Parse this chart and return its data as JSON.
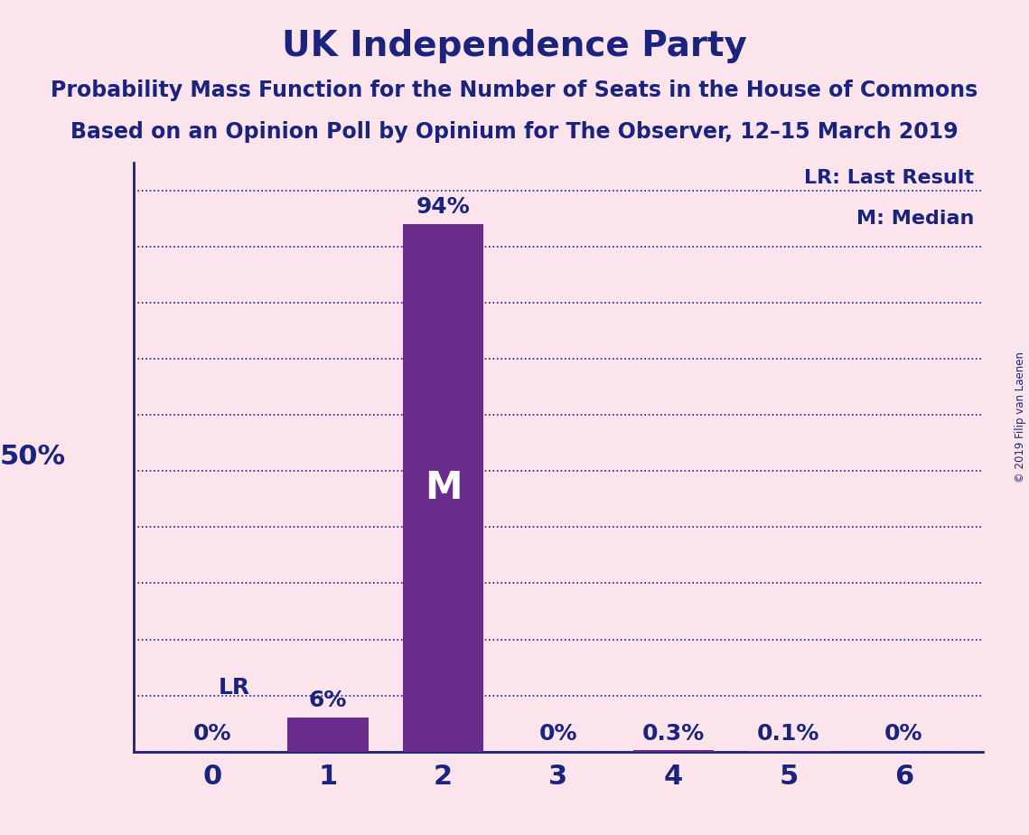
{
  "title": "UK Independence Party",
  "subtitle1": "Probability Mass Function for the Number of Seats in the House of Commons",
  "subtitle2": "Based on an Opinion Poll by Opinium for The Observer, 12–15 March 2019",
  "copyright": "© 2019 Filip van Laenen",
  "categories": [
    0,
    1,
    2,
    3,
    4,
    5,
    6
  ],
  "values": [
    0.0,
    0.06,
    0.94,
    0.0,
    0.003,
    0.001,
    0.0
  ],
  "bar_labels": [
    "0%",
    "6%",
    "94%",
    "0%",
    "0.3%",
    "0.1%",
    "0%"
  ],
  "bar_color": "#6b2d8b",
  "background_color": "#fce4ec",
  "text_color": "#1a237e",
  "ylabel_text": "50%",
  "ylabel_value": 0.5,
  "median_label": "M",
  "median_bar": 2,
  "lr_label": "LR",
  "lr_bar": 0,
  "legend_lr": "LR: Last Result",
  "legend_m": "M: Median",
  "ylim": [
    0,
    1.0
  ],
  "ytick_positions": [
    0.0,
    0.1,
    0.2,
    0.3,
    0.4,
    0.5,
    0.6,
    0.7,
    0.8,
    0.9,
    1.0
  ],
  "grid_color": "#1a237e",
  "title_fontsize": 28,
  "subtitle_fontsize": 17,
  "bar_label_fontsize": 18,
  "annotation_fontsize": 18,
  "legend_fontsize": 16,
  "ylabel_fontsize": 22,
  "xtick_fontsize": 22
}
